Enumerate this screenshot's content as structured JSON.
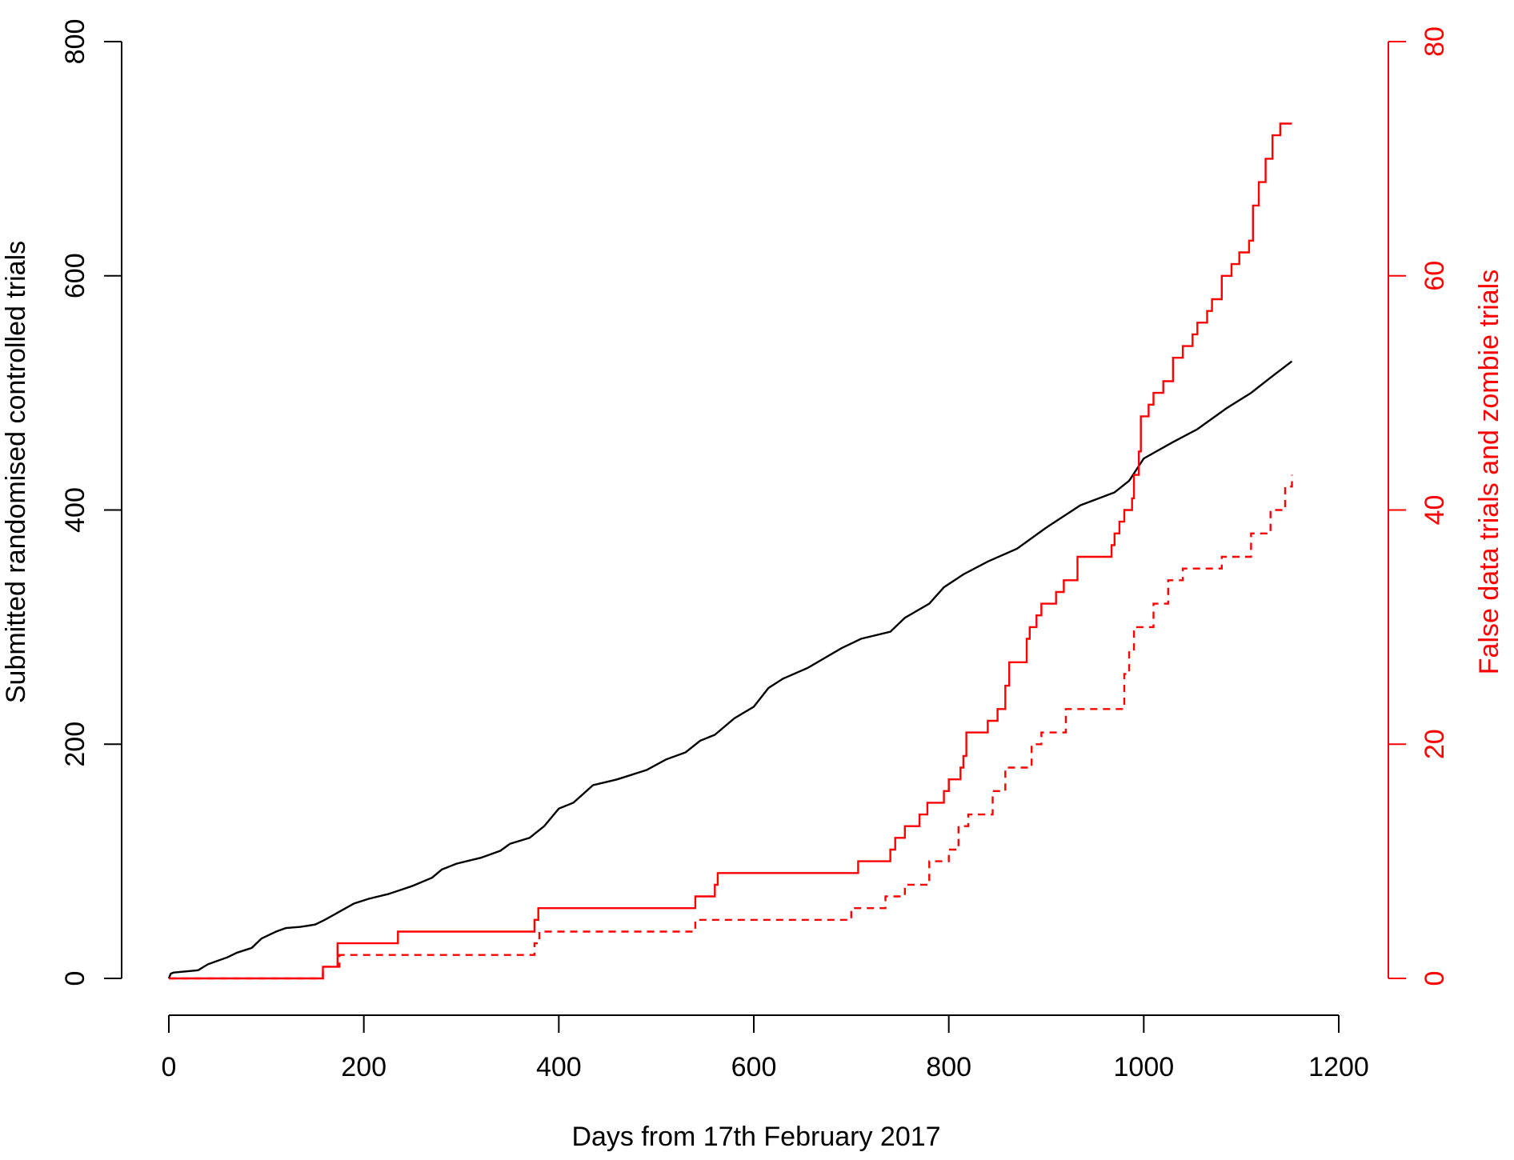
{
  "chart_data": {
    "type": "line",
    "xlabel": "Days from 17th February 2017",
    "ylabel": "Submitted randomised controlled trials",
    "y2label": "False data trials and zombie trials",
    "xlim": [
      0,
      1200
    ],
    "ylim": [
      0,
      800
    ],
    "y2lim": [
      0,
      80
    ],
    "x_ticks": [
      "0",
      "200",
      "400",
      "600",
      "800",
      "1000",
      "1200"
    ],
    "y_ticks": [
      "0",
      "200",
      "400",
      "600",
      "800"
    ],
    "y2_ticks": [
      "0",
      "20",
      "40",
      "60",
      "80"
    ],
    "grid": false,
    "colors": {
      "left_axis": "#000000",
      "right_axis": "#ff0000"
    },
    "series": [
      {
        "axis": "left",
        "color": "#000000",
        "style": "solid",
        "step": false,
        "points": [
          [
            0,
            0
          ],
          [
            2,
            4
          ],
          [
            5,
            5
          ],
          [
            30,
            7
          ],
          [
            40,
            12
          ],
          [
            50,
            15
          ],
          [
            60,
            18
          ],
          [
            70,
            22
          ],
          [
            85,
            26
          ],
          [
            95,
            34
          ],
          [
            110,
            40
          ],
          [
            120,
            43
          ],
          [
            135,
            44
          ],
          [
            150,
            46
          ],
          [
            160,
            50
          ],
          [
            175,
            57
          ],
          [
            190,
            64
          ],
          [
            205,
            68
          ],
          [
            225,
            72
          ],
          [
            250,
            79
          ],
          [
            270,
            86
          ],
          [
            280,
            93
          ],
          [
            295,
            98
          ],
          [
            320,
            103
          ],
          [
            340,
            109
          ],
          [
            350,
            115
          ],
          [
            370,
            120
          ],
          [
            385,
            130
          ],
          [
            400,
            145
          ],
          [
            415,
            150
          ],
          [
            435,
            165
          ],
          [
            460,
            170
          ],
          [
            490,
            178
          ],
          [
            510,
            187
          ],
          [
            530,
            193
          ],
          [
            545,
            203
          ],
          [
            560,
            208
          ],
          [
            580,
            222
          ],
          [
            600,
            232
          ],
          [
            615,
            248
          ],
          [
            630,
            256
          ],
          [
            655,
            265
          ],
          [
            690,
            282
          ],
          [
            710,
            290
          ],
          [
            740,
            296
          ],
          [
            755,
            308
          ],
          [
            780,
            320
          ],
          [
            795,
            334
          ],
          [
            815,
            345
          ],
          [
            840,
            356
          ],
          [
            870,
            367
          ],
          [
            900,
            385
          ],
          [
            935,
            404
          ],
          [
            970,
            415
          ],
          [
            985,
            425
          ],
          [
            1000,
            444
          ],
          [
            1030,
            458
          ],
          [
            1055,
            469
          ],
          [
            1085,
            487
          ],
          [
            1110,
            500
          ],
          [
            1130,
            513
          ],
          [
            1152,
            527
          ]
        ]
      },
      {
        "axis": "right",
        "color": "#ff0000",
        "style": "solid",
        "step": true,
        "points": [
          [
            0,
            0
          ],
          [
            158,
            1
          ],
          [
            173,
            3
          ],
          [
            235,
            4
          ],
          [
            375,
            5
          ],
          [
            379,
            6
          ],
          [
            540,
            7
          ],
          [
            560,
            8
          ],
          [
            563,
            9
          ],
          [
            705,
            9
          ],
          [
            707,
            10
          ],
          [
            740,
            11
          ],
          [
            745,
            12
          ],
          [
            755,
            13
          ],
          [
            770,
            14
          ],
          [
            778,
            15
          ],
          [
            795,
            16
          ],
          [
            800,
            17
          ],
          [
            812,
            18
          ],
          [
            815,
            19
          ],
          [
            818,
            21
          ],
          [
            840,
            22
          ],
          [
            850,
            23
          ],
          [
            858,
            25
          ],
          [
            862,
            27
          ],
          [
            880,
            29
          ],
          [
            883,
            30
          ],
          [
            890,
            31
          ],
          [
            895,
            32
          ],
          [
            910,
            33
          ],
          [
            918,
            34
          ],
          [
            932,
            36
          ],
          [
            967,
            37
          ],
          [
            970,
            38
          ],
          [
            975,
            39
          ],
          [
            980,
            40
          ],
          [
            988,
            41
          ],
          [
            990,
            43
          ],
          [
            995,
            45
          ],
          [
            997,
            48
          ],
          [
            1005,
            49
          ],
          [
            1010,
            50
          ],
          [
            1020,
            51
          ],
          [
            1030,
            53
          ],
          [
            1040,
            54
          ],
          [
            1050,
            55
          ],
          [
            1055,
            56
          ],
          [
            1065,
            57
          ],
          [
            1070,
            58
          ],
          [
            1080,
            60
          ],
          [
            1090,
            61
          ],
          [
            1098,
            62
          ],
          [
            1108,
            63
          ],
          [
            1112,
            66
          ],
          [
            1118,
            68
          ],
          [
            1125,
            70
          ],
          [
            1132,
            72
          ],
          [
            1140,
            73
          ],
          [
            1152,
            73
          ]
        ]
      },
      {
        "axis": "right",
        "color": "#ff0000",
        "style": "dashed",
        "step": true,
        "points": [
          [
            0,
            0
          ],
          [
            158,
            1
          ],
          [
            175,
            2
          ],
          [
            375,
            3
          ],
          [
            380,
            4
          ],
          [
            540,
            5
          ],
          [
            700,
            6
          ],
          [
            735,
            7
          ],
          [
            755,
            8
          ],
          [
            780,
            10
          ],
          [
            800,
            11
          ],
          [
            810,
            13
          ],
          [
            820,
            14
          ],
          [
            845,
            16
          ],
          [
            858,
            18
          ],
          [
            885,
            20
          ],
          [
            895,
            21
          ],
          [
            920,
            23
          ],
          [
            980,
            26
          ],
          [
            985,
            28
          ],
          [
            990,
            30
          ],
          [
            1010,
            32
          ],
          [
            1025,
            34
          ],
          [
            1040,
            35
          ],
          [
            1080,
            36
          ],
          [
            1110,
            38
          ],
          [
            1130,
            40
          ],
          [
            1145,
            42
          ],
          [
            1152,
            43
          ]
        ]
      }
    ]
  }
}
